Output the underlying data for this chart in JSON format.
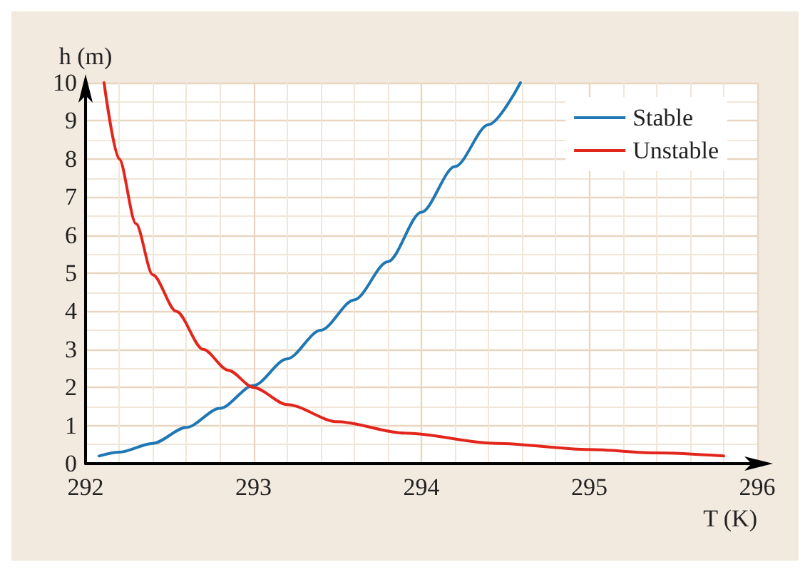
{
  "chart_data": {
    "type": "line",
    "xlabel": "T (K)",
    "ylabel": "h (m)",
    "xlim": [
      292,
      296
    ],
    "xticks": [
      292,
      293,
      294,
      295,
      296
    ],
    "ylim": [
      0,
      10
    ],
    "yticks": [
      0,
      1,
      2,
      3,
      4,
      5,
      6,
      7,
      8,
      9,
      10
    ],
    "grid": true,
    "legend": "top right",
    "marker": "none",
    "line_style": "solid",
    "series": [
      {
        "name": "Stable",
        "color": "#1f77b4",
        "x": [
          292.08,
          292.2,
          292.4,
          292.6,
          292.8,
          293,
          293.2,
          293.4,
          293.6,
          293.8,
          294,
          294.2,
          294.4,
          294.59
        ],
        "values": [
          0.2,
          0.3,
          0.53,
          0.95,
          1.45,
          2.05,
          2.75,
          3.5,
          4.3,
          5.3,
          6.6,
          7.8,
          8.9,
          10
        ]
      },
      {
        "name": "Unstable",
        "color": "#e3261c",
        "x": [
          292.11,
          292.2,
          292.3,
          292.4,
          292.54,
          292.7,
          292.85,
          293,
          293.2,
          293.5,
          293.9,
          294.45,
          295,
          295.4,
          295.8
        ],
        "values": [
          10,
          8,
          6.3,
          4.96,
          4,
          3,
          2.45,
          2,
          1.55,
          1.1,
          0.8,
          0.53,
          0.37,
          0.28,
          0.2
        ]
      }
    ]
  }
}
